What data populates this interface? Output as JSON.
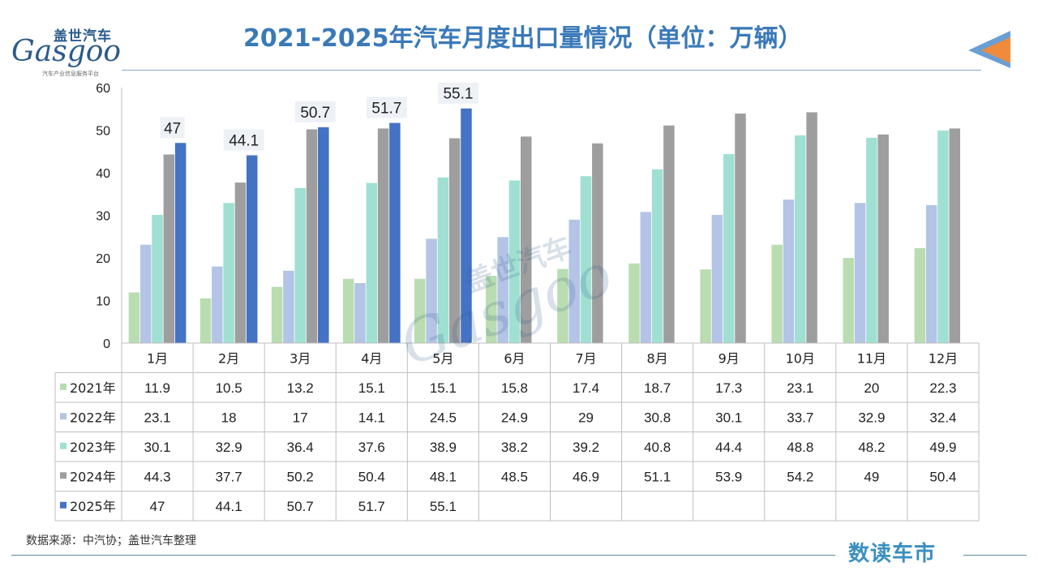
{
  "header": {
    "title": "2021-2025年汽车月度出口量情况（单位：万辆）",
    "logo_cn": "盖世汽车",
    "logo_en": "Gasgoo",
    "logo_tag": "汽车产业信息服务平台"
  },
  "footer": {
    "source": "数据来源：中汽协；盖世汽车整理",
    "brand": "数读车市"
  },
  "watermark": {
    "cn": "盖世汽车",
    "en": "Gasgoo"
  },
  "colors": {
    "2021年": "#b9ddb0",
    "2022年": "#b3c4e6",
    "2023年": "#9fe0d3",
    "2024年": "#9e9e9e",
    "2025年": "#4472c4",
    "accent": "#3a79b8",
    "arrow_orange": "#f08a3c",
    "arrow_blue": "#6a9fd4"
  },
  "chart_data": {
    "type": "bar",
    "title": "2021-2025年汽车月度出口量情况（单位：万辆）",
    "categories": [
      "1月",
      "2月",
      "3月",
      "4月",
      "5月",
      "6月",
      "7月",
      "8月",
      "9月",
      "10月",
      "11月",
      "12月"
    ],
    "ylim": [
      0,
      60
    ],
    "yticks": [
      0,
      10,
      20,
      30,
      40,
      50,
      60
    ],
    "grid": false,
    "legend": "data table",
    "series": [
      {
        "name": "2021年",
        "values": [
          11.9,
          10.5,
          13.2,
          15.1,
          15.1,
          15.8,
          17.4,
          18.7,
          17.3,
          23.1,
          20,
          22.3
        ]
      },
      {
        "name": "2022年",
        "values": [
          23.1,
          18,
          17,
          14.1,
          24.5,
          24.9,
          29,
          30.8,
          30.1,
          33.7,
          32.9,
          32.4
        ]
      },
      {
        "name": "2023年",
        "values": [
          30.1,
          32.9,
          36.4,
          37.6,
          38.9,
          38.2,
          39.2,
          40.8,
          44.4,
          48.8,
          48.2,
          49.9
        ]
      },
      {
        "name": "2024年",
        "values": [
          44.3,
          37.7,
          50.2,
          50.4,
          48.1,
          48.5,
          46.9,
          51.1,
          53.9,
          54.2,
          49,
          50.4
        ]
      },
      {
        "name": "2025年",
        "values": [
          47,
          44.1,
          50.7,
          51.7,
          55.1,
          null,
          null,
          null,
          null,
          null,
          null,
          null
        ]
      }
    ],
    "data_labels_series": "2025年"
  }
}
